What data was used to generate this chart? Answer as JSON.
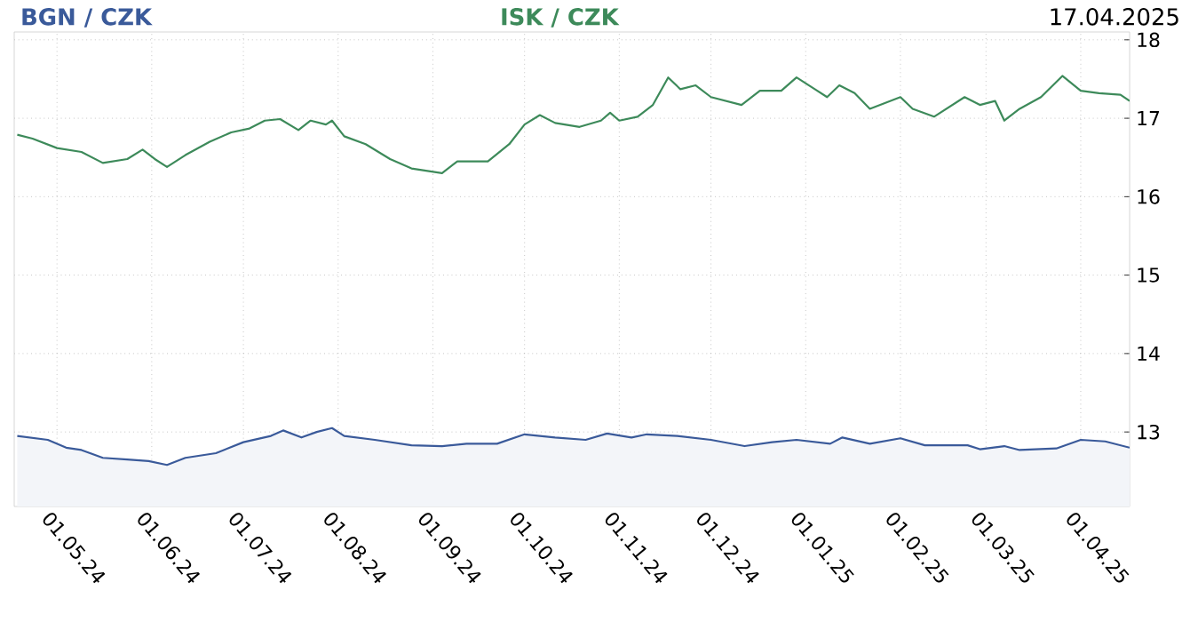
{
  "chart_data": {
    "type": "line",
    "annotations": [
      "17.04.2025"
    ],
    "xlim": [
      "2024-04-17",
      "2025-04-17"
    ],
    "ylim": [
      12.05,
      18.1
    ],
    "xticks": [
      {
        "value": "2024-05-01",
        "label": "01.05.24"
      },
      {
        "value": "2024-06-01",
        "label": "01.06.24"
      },
      {
        "value": "2024-07-01",
        "label": "01.07.24"
      },
      {
        "value": "2024-08-01",
        "label": "01.08.24"
      },
      {
        "value": "2024-09-01",
        "label": "01.09.24"
      },
      {
        "value": "2024-10-01",
        "label": "01.10.24"
      },
      {
        "value": "2024-11-01",
        "label": "01.11.24"
      },
      {
        "value": "2024-12-01",
        "label": "01.12.24"
      },
      {
        "value": "2025-01-01",
        "label": "01.01.25"
      },
      {
        "value": "2025-02-01",
        "label": "01.02.25"
      },
      {
        "value": "2025-03-01",
        "label": "01.03.25"
      },
      {
        "value": "2025-04-01",
        "label": "01.04.25"
      }
    ],
    "yticks": [
      13,
      14,
      15,
      16,
      17,
      18
    ],
    "grid": true,
    "series": [
      {
        "name": "BGN / CZK",
        "type": "area",
        "color": "#3a5a9a",
        "x": [
          "2024-04-18",
          "2024-04-28",
          "2024-05-04",
          "2024-05-09",
          "2024-05-16",
          "2024-05-24",
          "2024-05-31",
          "2024-06-06",
          "2024-06-12",
          "2024-06-22",
          "2024-07-01",
          "2024-07-10",
          "2024-07-14",
          "2024-07-20",
          "2024-07-25",
          "2024-07-30",
          "2024-08-03",
          "2024-08-13",
          "2024-08-25",
          "2024-09-04",
          "2024-09-12",
          "2024-09-22",
          "2024-10-01",
          "2024-10-11",
          "2024-10-21",
          "2024-10-28",
          "2024-11-05",
          "2024-11-10",
          "2024-11-20",
          "2024-12-01",
          "2024-12-12",
          "2024-12-21",
          "2024-12-29",
          "2025-01-09",
          "2025-01-13",
          "2025-01-22",
          "2025-02-01",
          "2025-02-09",
          "2025-02-23",
          "2025-02-27",
          "2025-03-07",
          "2025-03-12",
          "2025-03-24",
          "2025-04-01",
          "2025-04-09",
          "2025-04-17"
        ],
        "values": [
          12.95,
          12.9,
          12.8,
          12.77,
          12.67,
          12.65,
          12.63,
          12.58,
          12.67,
          12.73,
          12.87,
          12.95,
          13.02,
          12.93,
          13.0,
          13.05,
          12.95,
          12.9,
          12.83,
          12.82,
          12.85,
          12.85,
          12.97,
          12.93,
          12.9,
          12.98,
          12.93,
          12.97,
          12.95,
          12.9,
          12.82,
          12.87,
          12.9,
          12.85,
          12.93,
          12.85,
          12.92,
          12.83,
          12.83,
          12.78,
          12.82,
          12.77,
          12.79,
          12.9,
          12.88,
          12.8
        ]
      },
      {
        "name": "ISK / CZK",
        "color": "#3d8a5a",
        "x": [
          "2024-04-18",
          "2024-04-23",
          "2024-05-01",
          "2024-05-09",
          "2024-05-16",
          "2024-05-24",
          "2024-05-29",
          "2024-06-02",
          "2024-06-06",
          "2024-06-12",
          "2024-06-20",
          "2024-06-27",
          "2024-07-03",
          "2024-07-08",
          "2024-07-13",
          "2024-07-19",
          "2024-07-23",
          "2024-07-28",
          "2024-07-30",
          "2024-08-03",
          "2024-08-10",
          "2024-08-18",
          "2024-08-25",
          "2024-09-04",
          "2024-09-09",
          "2024-09-19",
          "2024-09-26",
          "2024-10-01",
          "2024-10-06",
          "2024-10-11",
          "2024-10-19",
          "2024-10-26",
          "2024-10-29",
          "2024-11-01",
          "2024-11-07",
          "2024-11-12",
          "2024-11-17",
          "2024-11-21",
          "2024-11-26",
          "2024-12-01",
          "2024-12-11",
          "2024-12-17",
          "2024-12-24",
          "2024-12-29",
          "2025-01-04",
          "2025-01-08",
          "2025-01-12",
          "2025-01-17",
          "2025-01-22",
          "2025-02-01",
          "2025-02-05",
          "2025-02-12",
          "2025-02-22",
          "2025-02-27",
          "2025-03-04",
          "2025-03-07",
          "2025-03-12",
          "2025-03-19",
          "2025-03-26",
          "2025-04-01",
          "2025-04-07",
          "2025-04-14",
          "2025-04-17"
        ],
        "values": [
          16.79,
          16.74,
          16.62,
          16.57,
          16.43,
          16.48,
          16.6,
          16.48,
          16.38,
          16.53,
          16.7,
          16.82,
          16.87,
          16.97,
          16.99,
          16.85,
          16.97,
          16.92,
          16.97,
          16.77,
          16.67,
          16.48,
          16.36,
          16.3,
          16.45,
          16.45,
          16.67,
          16.92,
          17.04,
          16.94,
          16.89,
          16.97,
          17.07,
          16.97,
          17.02,
          17.17,
          17.52,
          17.37,
          17.42,
          17.27,
          17.17,
          17.35,
          17.35,
          17.52,
          17.37,
          17.27,
          17.42,
          17.32,
          17.12,
          17.27,
          17.12,
          17.02,
          17.27,
          17.17,
          17.22,
          16.97,
          17.12,
          17.27,
          17.54,
          17.35,
          17.32,
          17.3,
          17.22
        ]
      }
    ]
  }
}
